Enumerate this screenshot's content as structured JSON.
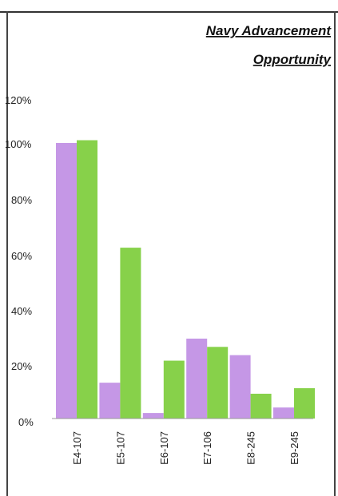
{
  "chart_data": {
    "type": "bar",
    "title_lines": [
      "Navy Advancement",
      "Opportunity"
    ],
    "categories": [
      "E4-107",
      "E5-107",
      "E6-107",
      "E7-106",
      "E8-245",
      "E9-245"
    ],
    "series": [
      {
        "color": "#c597e6",
        "values": [
          100,
          13,
          2,
          29,
          23,
          4
        ]
      },
      {
        "color": "#87d14a",
        "values": [
          101,
          62,
          21,
          26,
          9,
          11
        ]
      }
    ],
    "yticks": [
      "0%",
      "20%",
      "40%",
      "60%",
      "80%",
      "100%",
      "120%"
    ],
    "ylim": [
      0,
      120
    ],
    "xlabel": "",
    "ylabel": "",
    "grid": false,
    "legend": "none"
  }
}
